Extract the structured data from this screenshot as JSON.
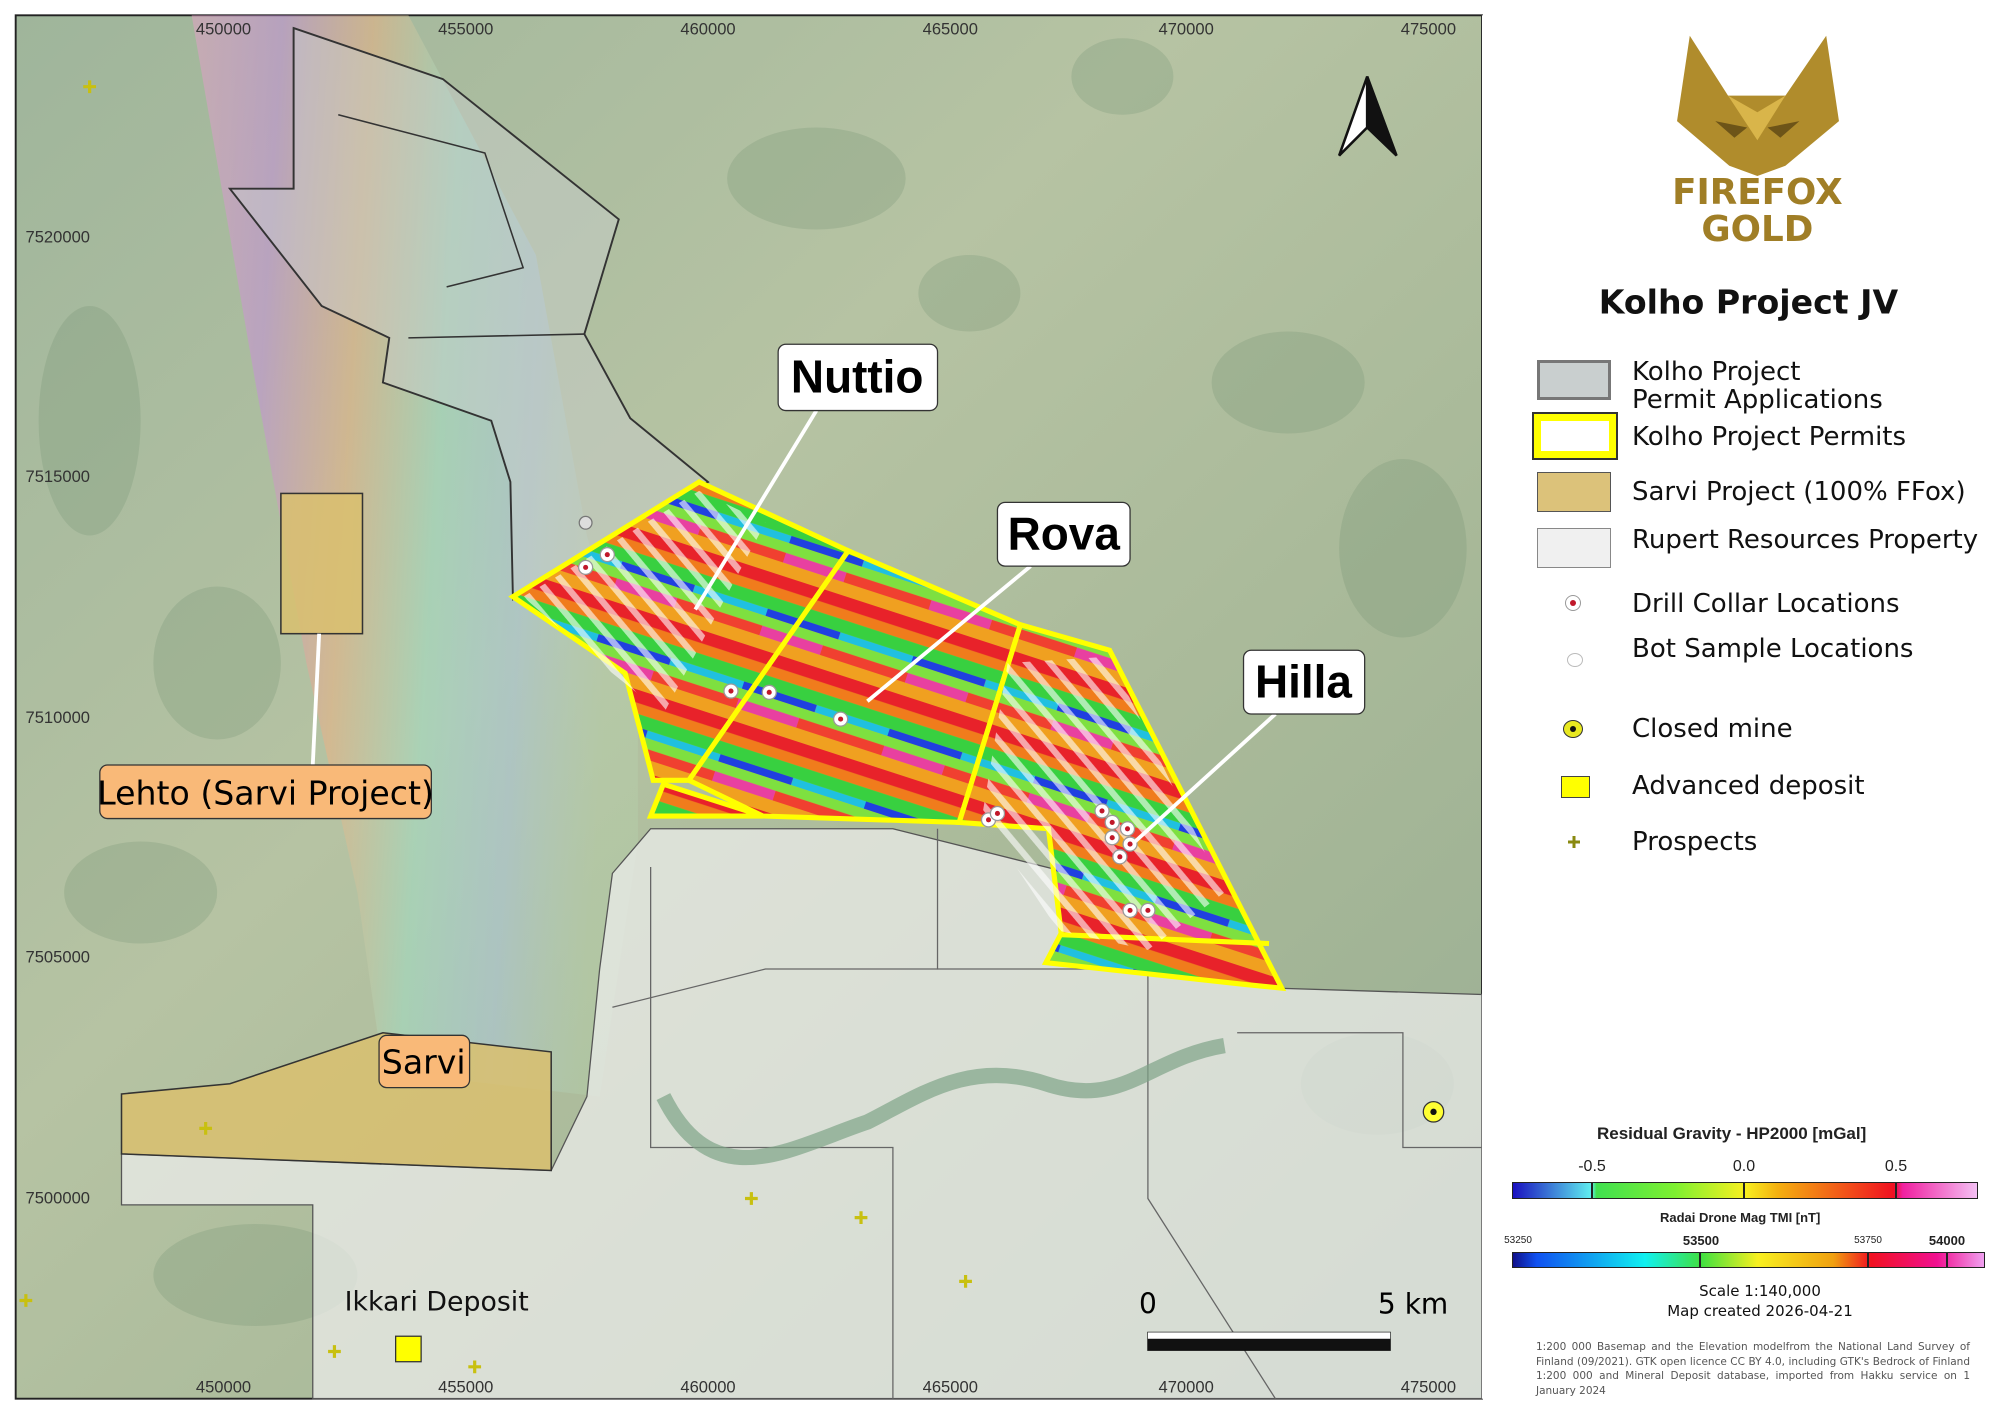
{
  "map": {
    "eastings_top": [
      "450000",
      "455000",
      "460000",
      "465000",
      "470000",
      "475000"
    ],
    "eastings_bottom": [
      "450000",
      "455000",
      "460000",
      "465000",
      "470000",
      "475000"
    ],
    "northings": [
      "7520000",
      "7515000",
      "7510000",
      "7505000",
      "7500000"
    ],
    "labels": {
      "nuttio": "Nuttio",
      "rova": "Rova",
      "hilla": "Hilla",
      "lehto": "Lehto (Sarvi Project)",
      "sarvi": "Sarvi",
      "ikkari": "Ikkari Deposit"
    },
    "scale_bar": {
      "start": "0",
      "end": "5 km"
    },
    "north_arrow_icon": "north-arrow-icon",
    "colors": {
      "permit_outline": "#ffff00",
      "sarvi_fill": "#d9bf6e",
      "label_box_orange": "#f9b978",
      "rupert_fill": "#efefef",
      "applications_fill": "#c9cfcf"
    }
  },
  "logo": {
    "line1": "FIREFOX",
    "line2": "GOLD",
    "icon": "fox-head-logo-icon",
    "color": "#b08c2c"
  },
  "legend": {
    "title": "Kolho Project JV",
    "items": [
      {
        "label_line1": "Kolho Project",
        "label_line2": "Permit Applications"
      },
      {
        "label": "Kolho Project Permits"
      },
      {
        "label": "Sarvi Project (100% FFox)"
      },
      {
        "label": "Rupert Resources Property"
      },
      {
        "label": "Drill Collar Locations"
      },
      {
        "label": "Bot Sample Locations"
      },
      {
        "label": "Closed mine"
      },
      {
        "label": "Advanced deposit"
      },
      {
        "label": "Prospects"
      }
    ]
  },
  "gravity_scale": {
    "title": "Residual Gravity - HP2000 [mGal]",
    "ticks": [
      "-0.5",
      "0.0",
      "0.5"
    ]
  },
  "mag_scale": {
    "title": "Radai Drone Mag TMI [nT]",
    "ticks": [
      "53250",
      "53500",
      "53750",
      "54000"
    ]
  },
  "scale_text": "Scale 1:140,000",
  "created_text": "Map created 2026-04-21",
  "attribution": "1:200 000 Basemap and the Elevation modelfrom the National Land Survey of Finland (09/2021). GTK open licence CC BY 4.0, including GTK's Bedrock of Finland 1:200 000 and Mineral Deposit database, imported from Hakku service on 1 January 2024"
}
